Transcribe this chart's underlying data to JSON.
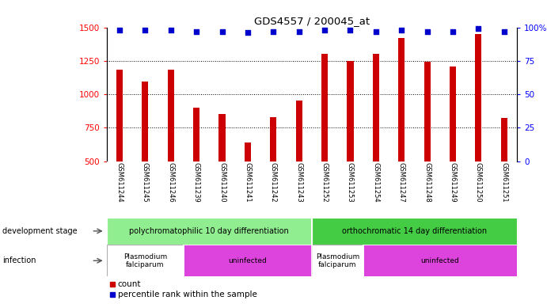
{
  "title": "GDS4557 / 200045_at",
  "categories": [
    "GSM611244",
    "GSM611245",
    "GSM611246",
    "GSM611239",
    "GSM611240",
    "GSM611241",
    "GSM611242",
    "GSM611243",
    "GSM611252",
    "GSM611253",
    "GSM611254",
    "GSM611247",
    "GSM611248",
    "GSM611249",
    "GSM611250",
    "GSM611251"
  ],
  "counts": [
    1185,
    1095,
    1185,
    900,
    850,
    640,
    830,
    950,
    1300,
    1250,
    1300,
    1420,
    1240,
    1210,
    1450,
    820
  ],
  "percentiles": [
    98,
    98,
    98,
    97,
    97,
    96,
    97,
    97,
    98,
    98,
    97,
    98,
    97,
    97,
    99,
    97
  ],
  "ylim_left": [
    500,
    1500
  ],
  "ylim_right": [
    0,
    100
  ],
  "yticks_left": [
    500,
    750,
    1000,
    1250,
    1500
  ],
  "yticks_right": [
    0,
    25,
    50,
    75,
    100
  ],
  "bar_color": "#cc0000",
  "dot_color": "#0000cc",
  "background_color": "#ffffff",
  "tick_area_color": "#c8c8c8",
  "dev_stage_color_left": "#90ee90",
  "dev_stage_color_right": "#44cc44",
  "infection_color_pf": "#ffffff",
  "infection_color_uninf": "#dd44dd",
  "dev_stage_labels": [
    "polychromatophilic 10 day differentiation",
    "orthochromatic 14 day differentiation"
  ],
  "grid_dotted_values": [
    750,
    1000,
    1250
  ],
  "bar_width": 0.25
}
